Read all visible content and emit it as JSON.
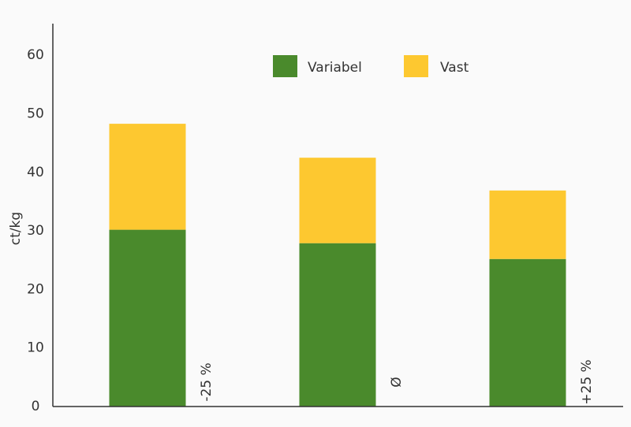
{
  "chart_data": {
    "type": "stacked_bar",
    "y_label": "ct/kg",
    "categories": [
      "-25 %",
      "Ø",
      "+25 %"
    ],
    "series": [
      {
        "name": "Variabel",
        "color": "#4a8a2c",
        "values": [
          30.2,
          27.9,
          25.2
        ]
      },
      {
        "name": "Vast",
        "color": "#fdc830",
        "values": [
          18.1,
          14.6,
          11.7
        ]
      }
    ],
    "ylim": [
      0,
      65
    ],
    "yticks": [
      0,
      10,
      20,
      30,
      40,
      50,
      60
    ],
    "legend": "top"
  }
}
